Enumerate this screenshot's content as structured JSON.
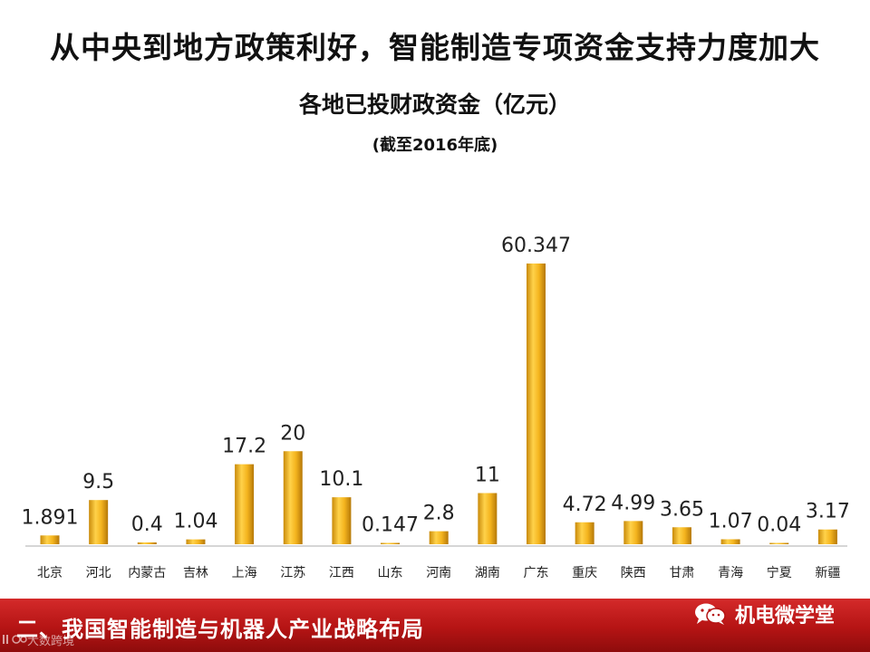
{
  "slide": {
    "title": "从中央到地方政策利好，智能制造专项资金支持力度加大",
    "footer_text": "二、我国智能制造与机器人产业战略布局",
    "brand": "机电微学堂",
    "brand_icon": "wechat-icon",
    "watermark_text": "大数跨境",
    "accent_color": "#c0161a"
  },
  "chart_data": {
    "type": "bar",
    "title": "各地已投财政资金（亿元）",
    "subtitle": "(截至2016年底)",
    "xlabel": "",
    "ylabel": "",
    "categories": [
      "北京",
      "河北",
      "内蒙古",
      "吉林",
      "上海",
      "江苏",
      "江西",
      "山东",
      "河南",
      "湖南",
      "广东",
      "重庆",
      "陕西",
      "甘肃",
      "青海",
      "宁夏",
      "新疆"
    ],
    "values": [
      1.891,
      9.5,
      0.4,
      1.04,
      17.2,
      20,
      10.1,
      0.147,
      2.8,
      11,
      60.347,
      4.72,
      4.99,
      3.65,
      1.07,
      0.04,
      3.17
    ],
    "value_labels": [
      "1.891",
      "9.5",
      "0.4",
      "1.04",
      "17.2",
      "20",
      "10.1",
      "0.147",
      "2.8",
      "11",
      "60.347",
      "4.72",
      "4.99",
      "3.65",
      "1.07",
      "0.04",
      "3.17"
    ],
    "ylim": [
      0,
      60.347
    ],
    "grid": false,
    "bar_color": "#f0b020",
    "legend": "none"
  }
}
